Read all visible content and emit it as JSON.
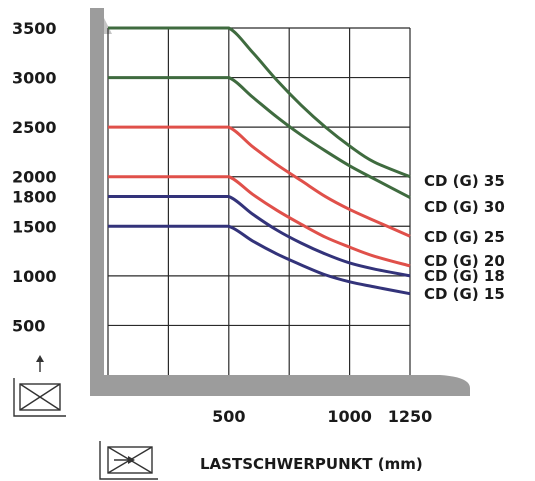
{
  "chart_data": {
    "type": "line",
    "xlabel": "LASTSCHWERPUNKT (mm)",
    "ylabel": "",
    "x_ticks": [
      500,
      1000,
      1250
    ],
    "y_ticks": [
      500,
      1000,
      1500,
      1800,
      2000,
      2500,
      3000,
      3500
    ],
    "xlim": [
      0,
      1250
    ],
    "ylim": [
      0,
      3500
    ],
    "grid": true,
    "series": [
      {
        "name": "CD (G) 35",
        "color": "#3f6b3f",
        "x": [
          0,
          500,
          600,
          700,
          800,
          900,
          1000,
          1100,
          1250
        ],
        "y": [
          3500,
          3500,
          3250,
          2970,
          2720,
          2500,
          2310,
          2150,
          2000
        ]
      },
      {
        "name": "CD (G) 30",
        "color": "#3f6b3f",
        "x": [
          0,
          500,
          600,
          700,
          800,
          900,
          1000,
          1100,
          1250
        ],
        "y": [
          3000,
          3000,
          2800,
          2600,
          2420,
          2260,
          2110,
          1980,
          1790
        ]
      },
      {
        "name": "CD (G) 25",
        "color": "#e0504a",
        "x": [
          0,
          500,
          600,
          700,
          800,
          900,
          1000,
          1100,
          1250
        ],
        "y": [
          2500,
          2500,
          2300,
          2120,
          1960,
          1800,
          1670,
          1560,
          1400
        ]
      },
      {
        "name": "CD (G) 20",
        "color": "#e0504a",
        "x": [
          0,
          500,
          600,
          700,
          800,
          900,
          1000,
          1100,
          1250
        ],
        "y": [
          2000,
          2000,
          1820,
          1660,
          1520,
          1390,
          1290,
          1200,
          1100
        ]
      },
      {
        "name": "CD (G) 18",
        "color": "#33337a",
        "x": [
          0,
          500,
          600,
          700,
          800,
          900,
          1000,
          1100,
          1250
        ],
        "y": [
          1800,
          1800,
          1620,
          1460,
          1330,
          1220,
          1130,
          1070,
          1000
        ]
      },
      {
        "name": "CD (G) 15",
        "color": "#33337a",
        "x": [
          0,
          500,
          600,
          700,
          800,
          900,
          1000,
          1100,
          1250
        ],
        "y": [
          1500,
          1500,
          1350,
          1220,
          1110,
          1010,
          940,
          890,
          820
        ]
      }
    ]
  }
}
